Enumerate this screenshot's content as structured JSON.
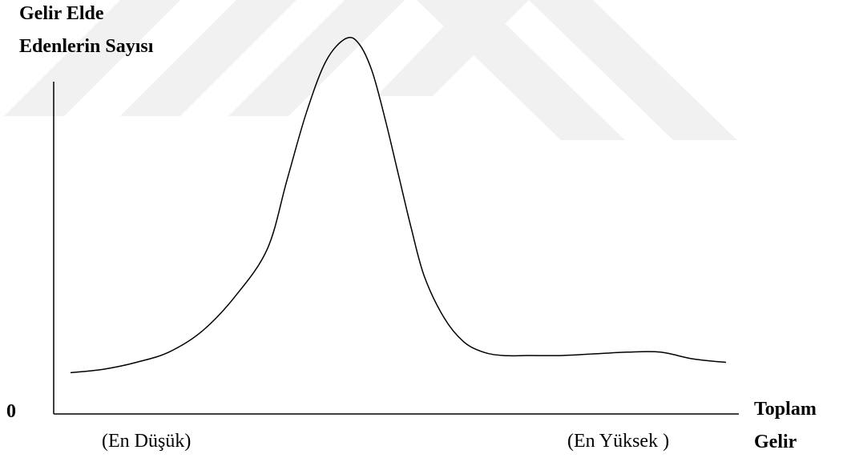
{
  "chart_data": {
    "type": "line",
    "ylabel_line1": "Gelir Elde",
    "ylabel_line2": "Edenlerin Sayısı",
    "origin_label": "0",
    "xlabel_line1": "Toplam",
    "xlabel_line2": "Gelir",
    "x_left_label": "(En Düşük)",
    "x_right_label": "(En Yüksek )",
    "grid": false,
    "x_ticks": false,
    "y_ticks": false,
    "series": [
      {
        "color": "#000000",
        "x": [
          0.0,
          0.05,
          0.1,
          0.15,
          0.2,
          0.25,
          0.3,
          0.33,
          0.36,
          0.39,
          0.42,
          0.44,
          0.46,
          0.48,
          0.5,
          0.52,
          0.54,
          0.57,
          0.6,
          0.63,
          0.66,
          0.7,
          0.75,
          0.8,
          0.85,
          0.9,
          0.95,
          1.0
        ],
        "y": [
          0.02,
          0.03,
          0.05,
          0.08,
          0.14,
          0.24,
          0.38,
          0.58,
          0.78,
          0.93,
          0.995,
          0.98,
          0.9,
          0.76,
          0.6,
          0.44,
          0.3,
          0.18,
          0.11,
          0.08,
          0.07,
          0.07,
          0.07,
          0.075,
          0.08,
          0.08,
          0.06,
          0.05
        ]
      }
    ]
  }
}
